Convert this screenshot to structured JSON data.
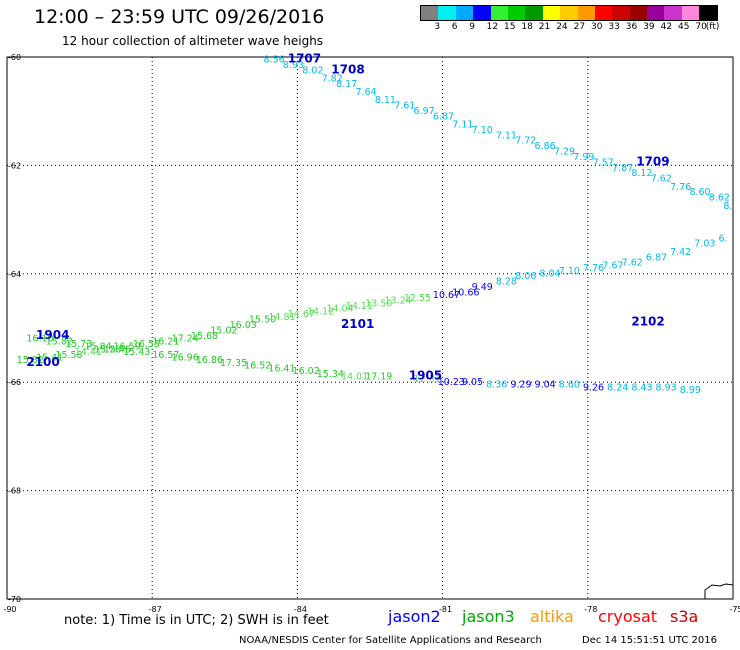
{
  "title": "12:00 – 23:59 UTC 09/26/2016",
  "subtitle": "12 hour collection of altimeter wave heighs",
  "legend": {
    "unit": "(ft)",
    "colors": [
      "#808080",
      "#00eeee",
      "#00aaff",
      "#0000ff",
      "#33ee33",
      "#00cc00",
      "#009900",
      "#ffff00",
      "#ffcc00",
      "#ff9900",
      "#ff0000",
      "#cc0000",
      "#990000",
      "#990099",
      "#cc33cc",
      "#ff88dd",
      "#000000"
    ],
    "labels": [
      "3",
      "6",
      "9",
      "12",
      "15",
      "18",
      "21",
      "24",
      "27",
      "30",
      "33",
      "36",
      "39",
      "42",
      "45",
      "70"
    ]
  },
  "note": "note: 1) Time is in UTC; 2) SWH is in feet",
  "satellites": [
    {
      "name": "jason2",
      "color": "#0000ff"
    },
    {
      "name": "jason3",
      "color": "#00aa00"
    },
    {
      "name": "altika",
      "color": "#ff9900"
    },
    {
      "name": "cryosat",
      "color": "#ff0000"
    },
    {
      "name": "s3a",
      "color": "#cc0000"
    }
  ],
  "footer_left": "NOAA/NESDIS Center for Satellite Applications and Research",
  "footer_right": "Dec 14 15:51:51 UTC 2016",
  "chart_data": {
    "type": "scatter",
    "xlim": [
      -90,
      -75
    ],
    "ylim": [
      -70,
      -60
    ],
    "x_ticks": [
      -90,
      -87,
      -84,
      -81,
      -78,
      -75
    ],
    "y_ticks": [
      -60,
      -62,
      -64,
      -66,
      -68,
      -70
    ],
    "grid": true,
    "time_labels": [
      {
        "text": "1707",
        "x": -84.2,
        "y": -60.1,
        "color": "#0000cc"
      },
      {
        "text": "1708",
        "x": -83.3,
        "y": -60.3,
        "color": "#0000cc"
      },
      {
        "text": "1709",
        "x": -77.0,
        "y": -62.0,
        "color": "#0000cc"
      },
      {
        "text": "2102",
        "x": -77.1,
        "y": -64.95,
        "color": "#0000cc"
      },
      {
        "text": "2101",
        "x": -83.1,
        "y": -65.0,
        "color": "#0000cc"
      },
      {
        "text": "1904",
        "x": -89.4,
        "y": -65.2,
        "color": "#0000cc"
      },
      {
        "text": "2100",
        "x": -89.6,
        "y": -65.7,
        "color": "#0000cc"
      },
      {
        "text": "1905",
        "x": -81.7,
        "y": -65.95,
        "color": "#0000cc"
      }
    ],
    "series": [
      {
        "name": "1707-1709",
        "points": [
          {
            "x": -84.7,
            "y": -60.1,
            "v": "8.56",
            "c": "#00bbee"
          },
          {
            "x": -84.3,
            "y": -60.2,
            "v": "8.93",
            "c": "#00bbee"
          },
          {
            "x": -83.9,
            "y": -60.3,
            "v": "8.02",
            "c": "#00bbee"
          },
          {
            "x": -83.5,
            "y": -60.45,
            "v": "7.82",
            "c": "#00bbee"
          },
          {
            "x": -83.2,
            "y": -60.55,
            "v": "8.17",
            "c": "#00bbee"
          },
          {
            "x": -82.8,
            "y": -60.7,
            "v": "7.64",
            "c": "#00bbee"
          },
          {
            "x": -82.4,
            "y": -60.85,
            "v": "8.11",
            "c": "#00bbee"
          },
          {
            "x": -82.0,
            "y": -60.95,
            "v": "7.61",
            "c": "#00bbee"
          },
          {
            "x": -81.6,
            "y": -61.05,
            "v": "6.97",
            "c": "#00bbee"
          },
          {
            "x": -81.2,
            "y": -61.15,
            "v": "6.87",
            "c": "#00bbee"
          },
          {
            "x": -80.8,
            "y": -61.3,
            "v": "7.11",
            "c": "#00bbee"
          },
          {
            "x": -80.4,
            "y": -61.4,
            "v": "7.10",
            "c": "#00bbee"
          },
          {
            "x": -79.9,
            "y": -61.5,
            "v": "7.11",
            "c": "#00bbee"
          },
          {
            "x": -79.5,
            "y": -61.6,
            "v": "7.72",
            "c": "#00bbee"
          },
          {
            "x": -79.1,
            "y": -61.7,
            "v": "6.86",
            "c": "#00bbee"
          },
          {
            "x": -78.7,
            "y": -61.8,
            "v": "7.29",
            "c": "#00bbee"
          },
          {
            "x": -78.3,
            "y": -61.9,
            "v": "7.99",
            "c": "#00bbee"
          },
          {
            "x": -77.9,
            "y": -62.0,
            "v": "7.57",
            "c": "#00bbee"
          },
          {
            "x": -77.5,
            "y": -62.1,
            "v": "7.87",
            "c": "#00bbee"
          },
          {
            "x": -77.1,
            "y": -62.2,
            "v": "8.12",
            "c": "#00bbee"
          },
          {
            "x": -76.7,
            "y": -62.3,
            "v": "7.62",
            "c": "#00bbee"
          },
          {
            "x": -76.3,
            "y": -62.45,
            "v": "7.76",
            "c": "#00bbee"
          },
          {
            "x": -75.9,
            "y": -62.55,
            "v": "8.60",
            "c": "#00bbee"
          },
          {
            "x": -75.5,
            "y": -62.65,
            "v": "8.62",
            "c": "#00bbee"
          },
          {
            "x": -75.2,
            "y": -62.8,
            "v": "8.",
            "c": "#00bbee"
          }
        ]
      },
      {
        "name": "2100-2102",
        "points": [
          {
            "x": -89.8,
            "y": -65.65,
            "v": "15.82",
            "c": "#22cc22"
          },
          {
            "x": -89.4,
            "y": -65.6,
            "v": "15.41",
            "c": "#22cc22"
          },
          {
            "x": -89.0,
            "y": -65.55,
            "v": "15.58",
            "c": "#22cc22"
          },
          {
            "x": -88.6,
            "y": -65.5,
            "v": "14.41",
            "c": "#55dd55"
          },
          {
            "x": -88.2,
            "y": -65.45,
            "v": "15.28",
            "c": "#22cc22"
          },
          {
            "x": -87.8,
            "y": -65.4,
            "v": "16.59",
            "c": "#22cc22"
          },
          {
            "x": -87.4,
            "y": -65.35,
            "v": "16.55",
            "c": "#22cc22"
          },
          {
            "x": -87.0,
            "y": -65.3,
            "v": "16.21",
            "c": "#22cc22"
          },
          {
            "x": -86.6,
            "y": -65.25,
            "v": "17.24",
            "c": "#22cc22"
          },
          {
            "x": -86.2,
            "y": -65.2,
            "v": "15.68",
            "c": "#22cc22"
          },
          {
            "x": -85.8,
            "y": -65.1,
            "v": "15.02",
            "c": "#22cc22"
          },
          {
            "x": -85.4,
            "y": -65.0,
            "v": "16.03",
            "c": "#22cc22"
          },
          {
            "x": -85.0,
            "y": -64.9,
            "v": "15.50",
            "c": "#22cc22"
          },
          {
            "x": -84.6,
            "y": -64.85,
            "v": "14.81",
            "c": "#55dd55"
          },
          {
            "x": -84.2,
            "y": -64.8,
            "v": "14.67",
            "c": "#55dd55"
          },
          {
            "x": -83.8,
            "y": -64.75,
            "v": "14.12",
            "c": "#55dd55"
          },
          {
            "x": -83.4,
            "y": -64.7,
            "v": "14.04",
            "c": "#55dd55"
          },
          {
            "x": -83.0,
            "y": -64.65,
            "v": "14.11",
            "c": "#55dd55"
          },
          {
            "x": -82.6,
            "y": -64.6,
            "v": "13.50",
            "c": "#55dd55"
          },
          {
            "x": -82.2,
            "y": -64.55,
            "v": "13.24",
            "c": "#55dd55"
          },
          {
            "x": -81.8,
            "y": -64.5,
            "v": "12.55",
            "c": "#55dd55"
          },
          {
            "x": -81.2,
            "y": -64.45,
            "v": "10.67",
            "c": "#0000ff"
          },
          {
            "x": -80.8,
            "y": -64.4,
            "v": "10.66",
            "c": "#0000ff"
          },
          {
            "x": -80.4,
            "y": -64.3,
            "v": "9.49",
            "c": "#0000ff"
          },
          {
            "x": -79.9,
            "y": -64.2,
            "v": "8.28",
            "c": "#00bbee"
          },
          {
            "x": -79.5,
            "y": -64.1,
            "v": "8.06",
            "c": "#00bbee"
          },
          {
            "x": -79.0,
            "y": -64.05,
            "v": "8.04",
            "c": "#00bbee"
          },
          {
            "x": -78.6,
            "y": -64.0,
            "v": "7.10",
            "c": "#00bbee"
          },
          {
            "x": -78.1,
            "y": -63.95,
            "v": "7.76",
            "c": "#00bbee"
          },
          {
            "x": -77.7,
            "y": -63.9,
            "v": "7.67",
            "c": "#00bbee"
          },
          {
            "x": -77.3,
            "y": -63.85,
            "v": "7.62",
            "c": "#00bbee"
          },
          {
            "x": -76.8,
            "y": -63.75,
            "v": "6.87",
            "c": "#00bbee"
          },
          {
            "x": -76.3,
            "y": -63.65,
            "v": "7.42",
            "c": "#00bbee"
          },
          {
            "x": -75.8,
            "y": -63.5,
            "v": "7.03",
            "c": "#00bbee"
          },
          {
            "x": -75.3,
            "y": -63.4,
            "v": "6.",
            "c": "#00bbee"
          }
        ]
      },
      {
        "name": "1904-1905",
        "points": [
          {
            "x": -89.6,
            "y": -65.25,
            "v": "16.10",
            "c": "#22cc22"
          },
          {
            "x": -89.2,
            "y": -65.3,
            "v": "15.82",
            "c": "#22cc22"
          },
          {
            "x": -88.8,
            "y": -65.35,
            "v": "15.73",
            "c": "#22cc22"
          },
          {
            "x": -88.4,
            "y": -65.4,
            "v": "15.84",
            "c": "#22cc22"
          },
          {
            "x": -88.0,
            "y": -65.45,
            "v": "15.45",
            "c": "#22cc22"
          },
          {
            "x": -87.6,
            "y": -65.5,
            "v": "15.43",
            "c": "#22cc22"
          },
          {
            "x": -87.0,
            "y": -65.55,
            "v": "16.57",
            "c": "#22cc22"
          },
          {
            "x": -86.6,
            "y": -65.6,
            "v": "16.96",
            "c": "#22cc22"
          },
          {
            "x": -86.1,
            "y": -65.65,
            "v": "16.86",
            "c": "#22cc22"
          },
          {
            "x": -85.6,
            "y": -65.7,
            "v": "17.35",
            "c": "#22cc22"
          },
          {
            "x": -85.1,
            "y": -65.75,
            "v": "16.52",
            "c": "#22cc22"
          },
          {
            "x": -84.6,
            "y": -65.8,
            "v": "16.41",
            "c": "#22cc22"
          },
          {
            "x": -84.1,
            "y": -65.85,
            "v": "16.02",
            "c": "#22cc22"
          },
          {
            "x": -83.6,
            "y": -65.9,
            "v": "15.34",
            "c": "#22cc22"
          },
          {
            "x": -83.1,
            "y": -65.95,
            "v": "14.01",
            "c": "#55dd55"
          },
          {
            "x": -82.6,
            "y": -65.95,
            "v": "17.19",
            "c": "#22cc22"
          },
          {
            "x": -81.6,
            "y": -66.0,
            "v": "12.31",
            "c": "#55dd55"
          },
          {
            "x": -81.1,
            "y": -66.05,
            "v": "10.23",
            "c": "#0000ff"
          },
          {
            "x": -80.6,
            "y": -66.05,
            "v": "9.05",
            "c": "#0000ff"
          },
          {
            "x": -80.1,
            "y": -66.1,
            "v": "8.36",
            "c": "#00bbee"
          },
          {
            "x": -79.6,
            "y": -66.1,
            "v": "9.29",
            "c": "#0000ff"
          },
          {
            "x": -79.1,
            "y": -66.1,
            "v": "9.04",
            "c": "#0000ff"
          },
          {
            "x": -78.6,
            "y": -66.1,
            "v": "8.60",
            "c": "#00bbee"
          },
          {
            "x": -78.1,
            "y": -66.15,
            "v": "9.26",
            "c": "#0000ff"
          },
          {
            "x": -77.6,
            "y": -66.15,
            "v": "8.24",
            "c": "#00bbee"
          },
          {
            "x": -77.1,
            "y": -66.15,
            "v": "8.43",
            "c": "#00bbee"
          },
          {
            "x": -76.6,
            "y": -66.15,
            "v": "8.93",
            "c": "#00bbee"
          },
          {
            "x": -76.1,
            "y": -66.2,
            "v": "8.99",
            "c": "#00bbee"
          }
        ]
      }
    ]
  }
}
